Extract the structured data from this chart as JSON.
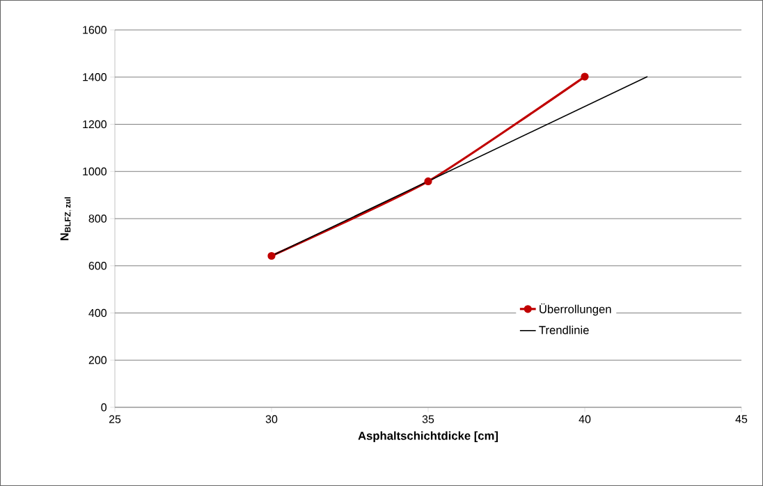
{
  "chart_data": {
    "type": "line",
    "xlabel": "Asphaltschichtdicke [cm]",
    "ylabel": "\\mathbf{N_{BLFZ,\\,zul}}",
    "xlim": [
      25,
      45
    ],
    "xticks": [
      25,
      30,
      35,
      40,
      45
    ],
    "ylim": [
      0,
      1600
    ],
    "yticks": [
      0,
      200,
      400,
      600,
      800,
      1000,
      1200,
      1400,
      1600
    ],
    "grid": "y",
    "legend": "right",
    "series": [
      {
        "name": "Überrollungen",
        "color": "#c00000",
        "x": [
          30,
          35,
          40
        ],
        "values": [
          642,
          958,
          1402
        ],
        "marker": "circle",
        "line_style": "solid"
      },
      {
        "name": "Trendlinie",
        "color": "#000000",
        "x": [
          30,
          42
        ],
        "values": [
          642,
          1402
        ],
        "marker": "none",
        "line_style": "solid"
      }
    ]
  }
}
